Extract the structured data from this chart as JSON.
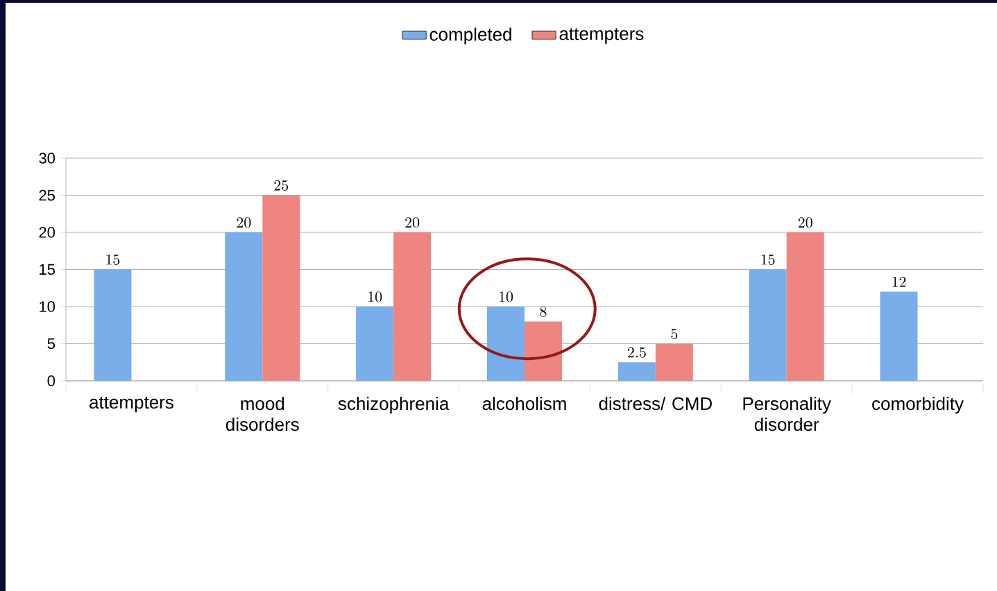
{
  "chart_data": {
    "type": "bar",
    "categories": [
      "attempters",
      "mood disorders",
      "schizophrenia",
      "alcoholism",
      "distress/ CMD",
      "Personality disorder",
      "comorbidity"
    ],
    "series": [
      {
        "name": "completed",
        "color": "#78aeea",
        "values": [
          15,
          20,
          10,
          10,
          2.5,
          15,
          12
        ]
      },
      {
        "name": "attempters",
        "color": "#ee8580",
        "values": [
          null,
          25,
          20,
          8,
          5,
          20,
          null
        ]
      }
    ],
    "ylim": [
      0,
      30
    ],
    "yticks": [
      0,
      5,
      10,
      15,
      20,
      25,
      30
    ],
    "grid": "y",
    "legend": "top",
    "data_labels": true
  }
}
